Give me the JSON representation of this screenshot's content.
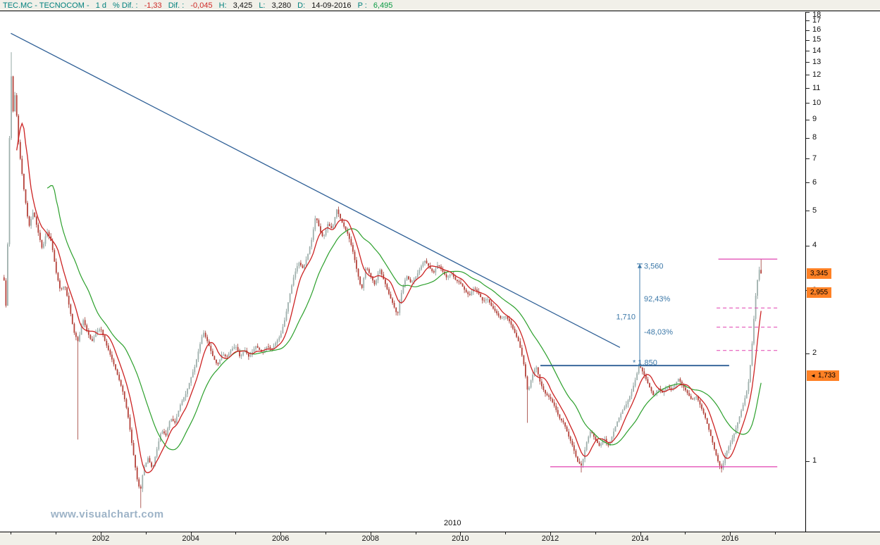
{
  "header": {
    "symbol": "TEC.MC - TECNOCOM -",
    "interval": "1 d",
    "pct_label": "% Dif. :",
    "pct_value": "-1,33",
    "dif_label": "Dif. :",
    "dif_value": "-0,045",
    "high_label": "H:",
    "high_value": "3,425",
    "low_label": "L:",
    "low_value": "3,280",
    "date_label": "D:",
    "date_value": "14-09-2016",
    "p_label": "P :",
    "p_value": "6,495"
  },
  "watermark": "www.visualchart.com",
  "colors": {
    "header_label": "#00807d",
    "negative": "#cf2a27",
    "positive": "#0a9b43",
    "up_candle": "#9fb0ad",
    "up_wick": "#7c928e",
    "down_candle": "#b5423a",
    "down_wick": "#9c3b34",
    "ma_fast": "#cc2222",
    "ma_slow": "#2ca02c",
    "trend_blue": "#2e5f96",
    "label_blue": "#3c78a8",
    "magenta": "#e040b0",
    "marker_orange": "#ff8125",
    "axis_bg": "#f1f0e9"
  },
  "chart_data": {
    "type": "candlestick",
    "title": "TECNOCOM (TEC.MC) daily",
    "y_scale": "log",
    "ylim": [
      0.7,
      18
    ],
    "xlim": [
      1999.8,
      2017.1
    ],
    "last_close": 3.345,
    "bar_step_years": 0.04,
    "y_axis": {
      "ticks": [
        18,
        17,
        16,
        15,
        14,
        13,
        12,
        11,
        10,
        9,
        8,
        7,
        6,
        5,
        4,
        3,
        2,
        1
      ]
    },
    "x_axis": {
      "ticks": [
        2002,
        2004,
        2006,
        2008,
        2010,
        2012,
        2014,
        2016
      ],
      "minor_tick_years": [
        2000,
        2001,
        2002,
        2003,
        2004,
        2005,
        2006,
        2007,
        2008,
        2009,
        2010,
        2011,
        2012,
        2013,
        2014,
        2015,
        2016,
        2017
      ],
      "mid_label": "2010"
    },
    "price_markers": [
      {
        "label": "3,345",
        "price": 3.345,
        "arrow": false
      },
      {
        "label": "2,955",
        "price": 2.955,
        "arrow": false
      },
      {
        "label": "1,733",
        "price": 1.733,
        "arrow": true
      }
    ],
    "moving_averages": [
      {
        "name": "fast-ma",
        "window_bars": 8,
        "color": "#cc2222",
        "end_value": 2.955
      },
      {
        "name": "slow-ma",
        "window_bars": 25,
        "color": "#2ca02c",
        "end_value": 1.733
      }
    ],
    "series": {
      "name": "TEC.MC close (anchor points, [year, price])",
      "points": [
        [
          1999.85,
          3.2
        ],
        [
          1999.9,
          2.6
        ],
        [
          1999.95,
          5.0
        ],
        [
          2000.0,
          12.5
        ],
        [
          2000.05,
          9.5
        ],
        [
          2000.1,
          10.8
        ],
        [
          2000.15,
          8.2
        ],
        [
          2000.22,
          6.8
        ],
        [
          2000.3,
          5.6
        ],
        [
          2000.4,
          4.5
        ],
        [
          2000.5,
          5.0
        ],
        [
          2000.6,
          4.4
        ],
        [
          2000.7,
          3.9
        ],
        [
          2000.8,
          4.4
        ],
        [
          2000.9,
          4.1
        ],
        [
          2001.0,
          3.4
        ],
        [
          2001.1,
          3.0
        ],
        [
          2001.2,
          3.1
        ],
        [
          2001.3,
          2.7
        ],
        [
          2001.4,
          2.3
        ],
        [
          2001.5,
          2.15
        ],
        [
          2001.6,
          2.5
        ],
        [
          2001.7,
          2.3
        ],
        [
          2001.8,
          2.15
        ],
        [
          2001.9,
          2.3
        ],
        [
          2002.0,
          2.35
        ],
        [
          2002.1,
          2.15
        ],
        [
          2002.2,
          2.0
        ],
        [
          2002.3,
          1.85
        ],
        [
          2002.4,
          1.7
        ],
        [
          2002.5,
          1.55
        ],
        [
          2002.6,
          1.35
        ],
        [
          2002.7,
          1.1
        ],
        [
          2002.8,
          0.9
        ],
        [
          2002.88,
          0.82
        ],
        [
          2002.95,
          0.95
        ],
        [
          2003.05,
          1.02
        ],
        [
          2003.15,
          0.95
        ],
        [
          2003.25,
          1.08
        ],
        [
          2003.35,
          1.22
        ],
        [
          2003.45,
          1.18
        ],
        [
          2003.55,
          1.32
        ],
        [
          2003.65,
          1.28
        ],
        [
          2003.78,
          1.45
        ],
        [
          2003.9,
          1.55
        ],
        [
          2004.0,
          1.7
        ],
        [
          2004.1,
          1.85
        ],
        [
          2004.2,
          2.1
        ],
        [
          2004.28,
          2.3
        ],
        [
          2004.38,
          2.15
        ],
        [
          2004.5,
          1.95
        ],
        [
          2004.6,
          1.85
        ],
        [
          2004.7,
          2.0
        ],
        [
          2004.8,
          1.95
        ],
        [
          2004.9,
          2.05
        ],
        [
          2005.0,
          2.1
        ],
        [
          2005.1,
          1.95
        ],
        [
          2005.2,
          2.05
        ],
        [
          2005.3,
          1.95
        ],
        [
          2005.45,
          2.1
        ],
        [
          2005.6,
          2.0
        ],
        [
          2005.7,
          2.1
        ],
        [
          2005.8,
          2.05
        ],
        [
          2005.9,
          2.15
        ],
        [
          2006.0,
          2.25
        ],
        [
          2006.1,
          2.5
        ],
        [
          2006.2,
          2.9
        ],
        [
          2006.3,
          3.3
        ],
        [
          2006.4,
          3.6
        ],
        [
          2006.5,
          3.45
        ],
        [
          2006.6,
          3.75
        ],
        [
          2006.7,
          4.2
        ],
        [
          2006.78,
          4.85
        ],
        [
          2006.88,
          4.4
        ],
        [
          2006.95,
          4.2
        ],
        [
          2007.05,
          4.6
        ],
        [
          2007.15,
          4.45
        ],
        [
          2007.25,
          5.05
        ],
        [
          2007.32,
          4.8
        ],
        [
          2007.4,
          4.55
        ],
        [
          2007.5,
          4.3
        ],
        [
          2007.6,
          3.9
        ],
        [
          2007.7,
          3.4
        ],
        [
          2007.8,
          3.0
        ],
        [
          2007.9,
          3.5
        ],
        [
          2008.0,
          3.3
        ],
        [
          2008.1,
          3.1
        ],
        [
          2008.2,
          3.45
        ],
        [
          2008.3,
          3.2
        ],
        [
          2008.4,
          2.95
        ],
        [
          2008.5,
          2.75
        ],
        [
          2008.6,
          2.55
        ],
        [
          2008.7,
          3.0
        ],
        [
          2008.8,
          3.3
        ],
        [
          2008.9,
          3.15
        ],
        [
          2009.0,
          3.25
        ],
        [
          2009.1,
          3.45
        ],
        [
          2009.2,
          3.65
        ],
        [
          2009.3,
          3.5
        ],
        [
          2009.4,
          3.35
        ],
        [
          2009.5,
          3.55
        ],
        [
          2009.6,
          3.4
        ],
        [
          2009.7,
          3.25
        ],
        [
          2009.8,
          3.35
        ],
        [
          2009.9,
          3.2
        ],
        [
          2010.0,
          3.15
        ],
        [
          2010.1,
          3.0
        ],
        [
          2010.2,
          2.9
        ],
        [
          2010.3,
          3.05
        ],
        [
          2010.4,
          2.95
        ],
        [
          2010.5,
          2.8
        ],
        [
          2010.6,
          2.85
        ],
        [
          2010.7,
          2.7
        ],
        [
          2010.8,
          2.6
        ],
        [
          2010.9,
          2.5
        ],
        [
          2011.0,
          2.55
        ],
        [
          2011.1,
          2.45
        ],
        [
          2011.2,
          2.3
        ],
        [
          2011.3,
          2.15
        ],
        [
          2011.4,
          1.9
        ],
        [
          2011.5,
          1.55
        ],
        [
          2011.58,
          1.7
        ],
        [
          2011.68,
          1.85
        ],
        [
          2011.78,
          1.65
        ],
        [
          2011.88,
          1.55
        ],
        [
          2012.0,
          1.5
        ],
        [
          2012.1,
          1.42
        ],
        [
          2012.2,
          1.32
        ],
        [
          2012.3,
          1.28
        ],
        [
          2012.4,
          1.18
        ],
        [
          2012.5,
          1.1
        ],
        [
          2012.6,
          1.0
        ],
        [
          2012.7,
          0.97
        ],
        [
          2012.8,
          1.12
        ],
        [
          2012.9,
          1.22
        ],
        [
          2013.0,
          1.15
        ],
        [
          2013.1,
          1.1
        ],
        [
          2013.2,
          1.16
        ],
        [
          2013.3,
          1.1
        ],
        [
          2013.4,
          1.2
        ],
        [
          2013.5,
          1.3
        ],
        [
          2013.6,
          1.38
        ],
        [
          2013.7,
          1.45
        ],
        [
          2013.8,
          1.55
        ],
        [
          2013.9,
          1.7
        ],
        [
          2013.98,
          1.86
        ],
        [
          2014.08,
          1.75
        ],
        [
          2014.2,
          1.62
        ],
        [
          2014.3,
          1.52
        ],
        [
          2014.4,
          1.6
        ],
        [
          2014.5,
          1.55
        ],
        [
          2014.6,
          1.62
        ],
        [
          2014.7,
          1.58
        ],
        [
          2014.85,
          1.7
        ],
        [
          2014.95,
          1.62
        ],
        [
          2015.05,
          1.55
        ],
        [
          2015.15,
          1.48
        ],
        [
          2015.25,
          1.52
        ],
        [
          2015.35,
          1.42
        ],
        [
          2015.45,
          1.32
        ],
        [
          2015.55,
          1.2
        ],
        [
          2015.65,
          1.08
        ],
        [
          2015.75,
          0.98
        ],
        [
          2015.82,
          0.95
        ],
        [
          2015.9,
          1.05
        ],
        [
          2016.0,
          1.12
        ],
        [
          2016.1,
          1.2
        ],
        [
          2016.2,
          1.32
        ],
        [
          2016.3,
          1.45
        ],
        [
          2016.4,
          1.62
        ],
        [
          2016.47,
          1.95
        ],
        [
          2016.53,
          2.5
        ],
        [
          2016.58,
          3.0
        ],
        [
          2016.63,
          3.35
        ],
        [
          2016.67,
          3.5
        ],
        [
          2016.7,
          3.345
        ]
      ]
    },
    "extremes": [
      {
        "year": 2000.0,
        "high": 13.9
      },
      {
        "year": 2001.5,
        "low": 1.15
      },
      {
        "year": 2002.88,
        "low": 0.74
      },
      {
        "year": 2011.5,
        "low": 1.28
      },
      {
        "year": 2012.7,
        "low": 0.93
      },
      {
        "year": 2015.82,
        "low": 0.93
      },
      {
        "year": 2016.67,
        "high": 3.67
      }
    ],
    "annotations": {
      "trendline": {
        "x1": 2000.0,
        "p1": 15.7,
        "x2": 2013.55,
        "p2": 2.08,
        "color": "#2e5f96"
      },
      "support_line": {
        "price": 1.85,
        "x1": 2011.78,
        "x2": 2015.98,
        "color": "#2e5f96"
      },
      "bottom_line": {
        "price": 0.965,
        "x1": 2012.0,
        "x2": 2017.05,
        "color": "#e040b0"
      },
      "top_line": {
        "price": 3.67,
        "x1": 2015.74,
        "x2": 2017.05,
        "color": "#e040b0"
      },
      "dashed_levels": [
        {
          "price": 2.68,
          "x1": 2015.7,
          "x2": 2017.05
        },
        {
          "price": 2.37,
          "x1": 2015.7,
          "x2": 2017.05
        },
        {
          "price": 2.04,
          "x1": 2015.7,
          "x2": 2017.05
        }
      ],
      "measure": {
        "x_year": 2013.99,
        "from_price": 1.85,
        "to_price": 3.56,
        "labels": [
          {
            "text": "3,560",
            "price": 3.52,
            "side": "right"
          },
          {
            "text": "92,43%",
            "price": 2.85,
            "side": "right"
          },
          {
            "text": "1,710",
            "price": 2.54,
            "side": "left"
          },
          {
            "text": "-48,03%",
            "price": 2.3,
            "side": "right"
          },
          {
            "text": "* 1,850",
            "price": 1.89,
            "side": "left-on"
          }
        ]
      }
    }
  }
}
